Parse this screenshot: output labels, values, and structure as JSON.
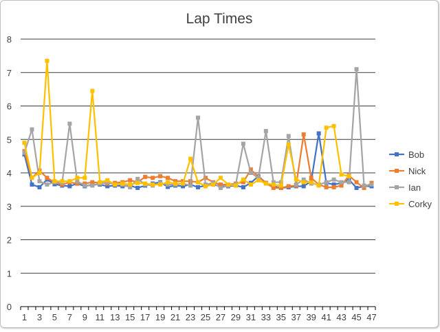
{
  "chart_data": {
    "type": "line",
    "title": "Lap Times",
    "xlabel": "",
    "ylabel": "",
    "ylim": [
      0,
      8
    ],
    "yticks": [
      0,
      1,
      2,
      3,
      4,
      5,
      6,
      7,
      8
    ],
    "xticks": [
      1,
      3,
      5,
      7,
      9,
      11,
      13,
      15,
      17,
      19,
      21,
      23,
      25,
      27,
      29,
      31,
      33,
      35,
      37,
      39,
      41,
      43,
      45,
      47
    ],
    "x": [
      1,
      2,
      3,
      4,
      5,
      6,
      7,
      8,
      9,
      10,
      11,
      12,
      13,
      14,
      15,
      16,
      17,
      18,
      19,
      20,
      21,
      22,
      23,
      24,
      25,
      26,
      27,
      28,
      29,
      30,
      31,
      32,
      33,
      34,
      35,
      36,
      37,
      38,
      39,
      40,
      41,
      42,
      43,
      44,
      45,
      46,
      47
    ],
    "grid": "horizontal",
    "legend": "right",
    "series": [
      {
        "name": "Bob",
        "color": "#4472C4",
        "values": [
          4.55,
          3.65,
          3.57,
          3.8,
          3.66,
          3.62,
          3.6,
          3.68,
          3.6,
          3.65,
          3.65,
          3.6,
          3.62,
          3.6,
          3.62,
          3.55,
          3.62,
          3.68,
          3.72,
          3.58,
          3.62,
          3.6,
          3.65,
          3.57,
          3.62,
          3.65,
          3.6,
          3.6,
          3.62,
          3.57,
          3.7,
          3.9,
          3.7,
          3.6,
          3.55,
          3.57,
          3.6,
          3.6,
          3.75,
          5.18,
          3.7,
          3.65,
          3.7,
          3.8,
          3.55,
          3.6,
          3.6
        ]
      },
      {
        "name": "Nick",
        "color": "#ED7D31",
        "values": [
          4.65,
          3.85,
          4.07,
          3.85,
          3.72,
          3.65,
          3.72,
          3.68,
          3.68,
          3.72,
          3.7,
          3.68,
          3.7,
          3.72,
          3.78,
          3.72,
          3.88,
          3.85,
          3.9,
          3.85,
          3.75,
          3.75,
          3.75,
          3.72,
          3.85,
          3.72,
          3.65,
          3.65,
          3.68,
          3.72,
          4.1,
          3.88,
          3.7,
          3.55,
          3.55,
          3.6,
          3.62,
          5.15,
          3.85,
          3.65,
          3.57,
          3.57,
          3.62,
          3.92,
          3.72,
          3.55,
          3.7
        ]
      },
      {
        "name": "Ian",
        "color": "#A5A5A5",
        "values": [
          4.6,
          5.3,
          3.75,
          3.65,
          3.72,
          3.7,
          5.47,
          3.75,
          3.62,
          3.62,
          3.68,
          3.72,
          3.65,
          3.65,
          3.57,
          3.82,
          3.65,
          3.62,
          3.7,
          3.65,
          3.65,
          3.68,
          3.62,
          5.65,
          3.65,
          3.7,
          3.55,
          3.62,
          3.65,
          4.87,
          4.0,
          3.85,
          5.25,
          3.72,
          3.72,
          5.1,
          3.65,
          3.8,
          3.68,
          3.65,
          3.72,
          3.8,
          3.72,
          3.72,
          7.1,
          3.62,
          3.65
        ]
      },
      {
        "name": "Corky",
        "color": "#FFC000",
        "values": [
          4.9,
          3.85,
          4.0,
          7.35,
          3.75,
          3.75,
          3.75,
          3.85,
          3.85,
          6.45,
          3.72,
          3.78,
          3.65,
          3.68,
          3.65,
          3.7,
          3.68,
          3.65,
          3.65,
          3.72,
          3.68,
          3.68,
          4.42,
          3.72,
          3.6,
          3.65,
          3.85,
          3.65,
          3.62,
          3.8,
          3.65,
          3.78,
          3.68,
          3.65,
          3.62,
          4.85,
          3.8,
          3.72,
          3.72,
          3.62,
          5.35,
          5.4,
          3.95,
          3.9,
          null,
          null,
          null
        ]
      }
    ]
  }
}
